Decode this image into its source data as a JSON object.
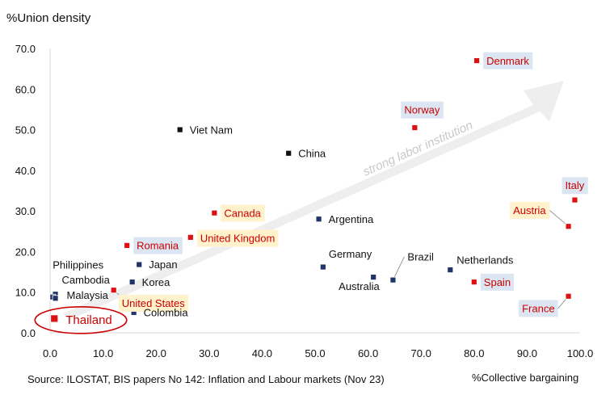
{
  "chart_data": {
    "type": "scatter",
    "title": "",
    "ylabel": "%Union density",
    "xlabel": "%Collective bargaining",
    "xlim": [
      0,
      100
    ],
    "ylim": [
      0,
      70
    ],
    "x_ticks": [
      "0.0",
      "10.0",
      "20.0",
      "30.0",
      "40.0",
      "50.0",
      "60.0",
      "70.0",
      "80.0",
      "90.0",
      "100.0"
    ],
    "y_ticks": [
      "0.0",
      "10.0",
      "20.0",
      "30.0",
      "40.0",
      "50.0",
      "60.0",
      "70.0"
    ],
    "grid": false,
    "arrow_label": "strong labor institution",
    "source": "Source: ILOSTAT, BIS papers No 142: Inflation and Labour markets (Nov 23)",
    "colors": {
      "red": "#dd1111",
      "navy": "#1f3468",
      "black": "#111111",
      "label_red": "#cc0000",
      "box_blue": "#dce6f2",
      "box_yellow": "#fff2cc",
      "arrow": "#eeeeee"
    },
    "points": [
      {
        "label": "Denmark",
        "x": 80.5,
        "y": 67.0,
        "color": "red",
        "label_style": "blue-box"
      },
      {
        "label": "Norway",
        "x": 68.8,
        "y": 50.5,
        "color": "red",
        "label_style": "blue-box"
      },
      {
        "label": "Viet Nam",
        "x": 24.5,
        "y": 50.0,
        "color": "black",
        "label_style": "plain"
      },
      {
        "label": "China",
        "x": 45.0,
        "y": 44.2,
        "color": "black",
        "label_style": "plain"
      },
      {
        "label": "Italy",
        "x": 99.0,
        "y": 32.7,
        "color": "red",
        "label_style": "blue-box"
      },
      {
        "label": "Austria",
        "x": 97.8,
        "y": 26.2,
        "color": "red",
        "label_style": "yellow-box"
      },
      {
        "label": "Canada",
        "x": 31.0,
        "y": 29.5,
        "color": "red",
        "label_style": "yellow-box"
      },
      {
        "label": "Argentina",
        "x": 50.7,
        "y": 28.0,
        "color": "navy",
        "label_style": "plain"
      },
      {
        "label": "United Kingdom",
        "x": 26.5,
        "y": 23.5,
        "color": "red",
        "label_style": "yellow-box"
      },
      {
        "label": "Romania",
        "x": 14.5,
        "y": 21.5,
        "color": "red",
        "label_style": "blue-box"
      },
      {
        "label": "Japan",
        "x": 16.8,
        "y": 16.8,
        "color": "navy",
        "label_style": "plain"
      },
      {
        "label": "Germany",
        "x": 51.5,
        "y": 16.2,
        "color": "navy",
        "label_style": "plain"
      },
      {
        "label": "Netherlands",
        "x": 75.5,
        "y": 15.5,
        "color": "navy",
        "label_style": "plain"
      },
      {
        "label": "Australia",
        "x": 61.0,
        "y": 13.7,
        "color": "navy",
        "label_style": "plain"
      },
      {
        "label": "Brazil",
        "x": 64.7,
        "y": 13.0,
        "color": "navy",
        "label_style": "plain"
      },
      {
        "label": "Spain",
        "x": 80.0,
        "y": 12.5,
        "color": "red",
        "label_style": "blue-box"
      },
      {
        "label": "Korea",
        "x": 15.5,
        "y": 12.5,
        "color": "navy",
        "label_style": "plain"
      },
      {
        "label": "United States",
        "x": 12.0,
        "y": 10.5,
        "color": "red",
        "label_style": "yellow-box"
      },
      {
        "label": "Cambodia",
        "x": 1.0,
        "y": 9.5,
        "color": "navy",
        "label_style": "plain"
      },
      {
        "label": "Philippines",
        "x": 0.5,
        "y": 8.8,
        "color": "navy",
        "label_style": "plain"
      },
      {
        "label": "Malaysia",
        "x": 1.0,
        "y": 8.5,
        "color": "navy",
        "label_style": "plain"
      },
      {
        "label": "France",
        "x": 97.8,
        "y": 9.0,
        "color": "red",
        "label_style": "blue-box"
      },
      {
        "label": "Colombia",
        "x": 15.8,
        "y": 5.0,
        "color": "navy",
        "label_style": "plain"
      },
      {
        "label": "Thailand",
        "x": 0.8,
        "y": 3.5,
        "color": "red",
        "label_style": "circled"
      }
    ]
  }
}
